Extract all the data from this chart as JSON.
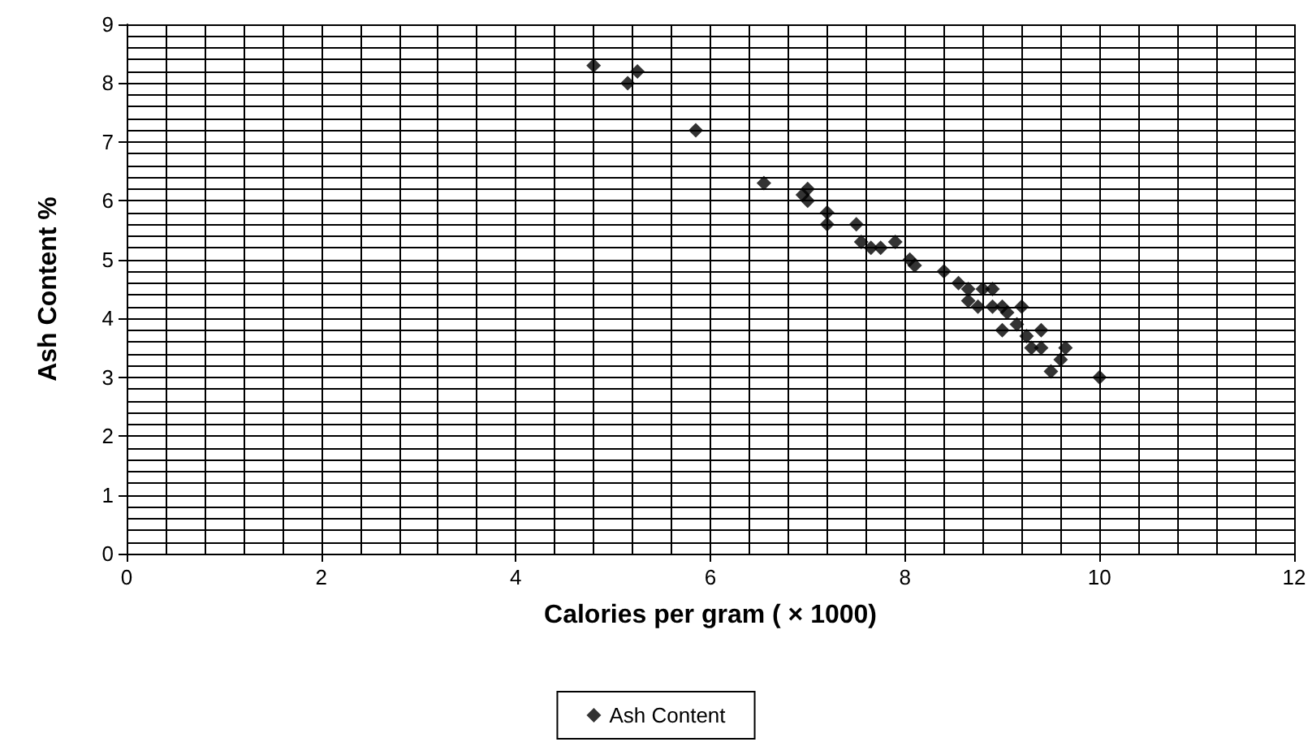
{
  "chart_data": {
    "type": "scatter",
    "xlabel": "Calories per gram ( × 1000)",
    "ylabel": "Ash Content %",
    "xlim": [
      0,
      12
    ],
    "xticks": [
      0,
      2,
      4,
      6,
      8,
      10,
      12
    ],
    "ylim": [
      0,
      9
    ],
    "yticks": [
      0,
      1,
      2,
      3,
      4,
      5,
      6,
      7,
      8,
      9
    ],
    "grid": true,
    "legend": "bottom",
    "marker": "diamond",
    "series": [
      {
        "name": "Ash Content",
        "color": "#000000",
        "x": [
          4.8,
          5.15,
          5.25,
          5.85,
          6.55,
          6.95,
          7.0,
          7.0,
          7.2,
          7.2,
          7.5,
          7.55,
          7.65,
          7.75,
          7.9,
          8.05,
          8.1,
          8.4,
          8.55,
          8.65,
          8.65,
          8.8,
          8.75,
          8.9,
          8.9,
          9.0,
          9.05,
          9.0,
          9.2,
          9.15,
          9.25,
          9.3,
          9.4,
          9.4,
          9.5,
          9.6,
          9.65,
          10.0
        ],
        "values": [
          8.3,
          8.0,
          8.2,
          7.2,
          6.3,
          6.1,
          6.2,
          6.0,
          5.8,
          5.6,
          5.6,
          5.3,
          5.2,
          5.2,
          5.3,
          5.0,
          4.9,
          4.8,
          4.6,
          4.5,
          4.3,
          4.5,
          4.2,
          4.5,
          4.2,
          4.2,
          4.1,
          3.8,
          4.2,
          3.9,
          3.7,
          3.5,
          3.5,
          3.8,
          3.1,
          3.3,
          3.5,
          3.0
        ]
      }
    ]
  }
}
